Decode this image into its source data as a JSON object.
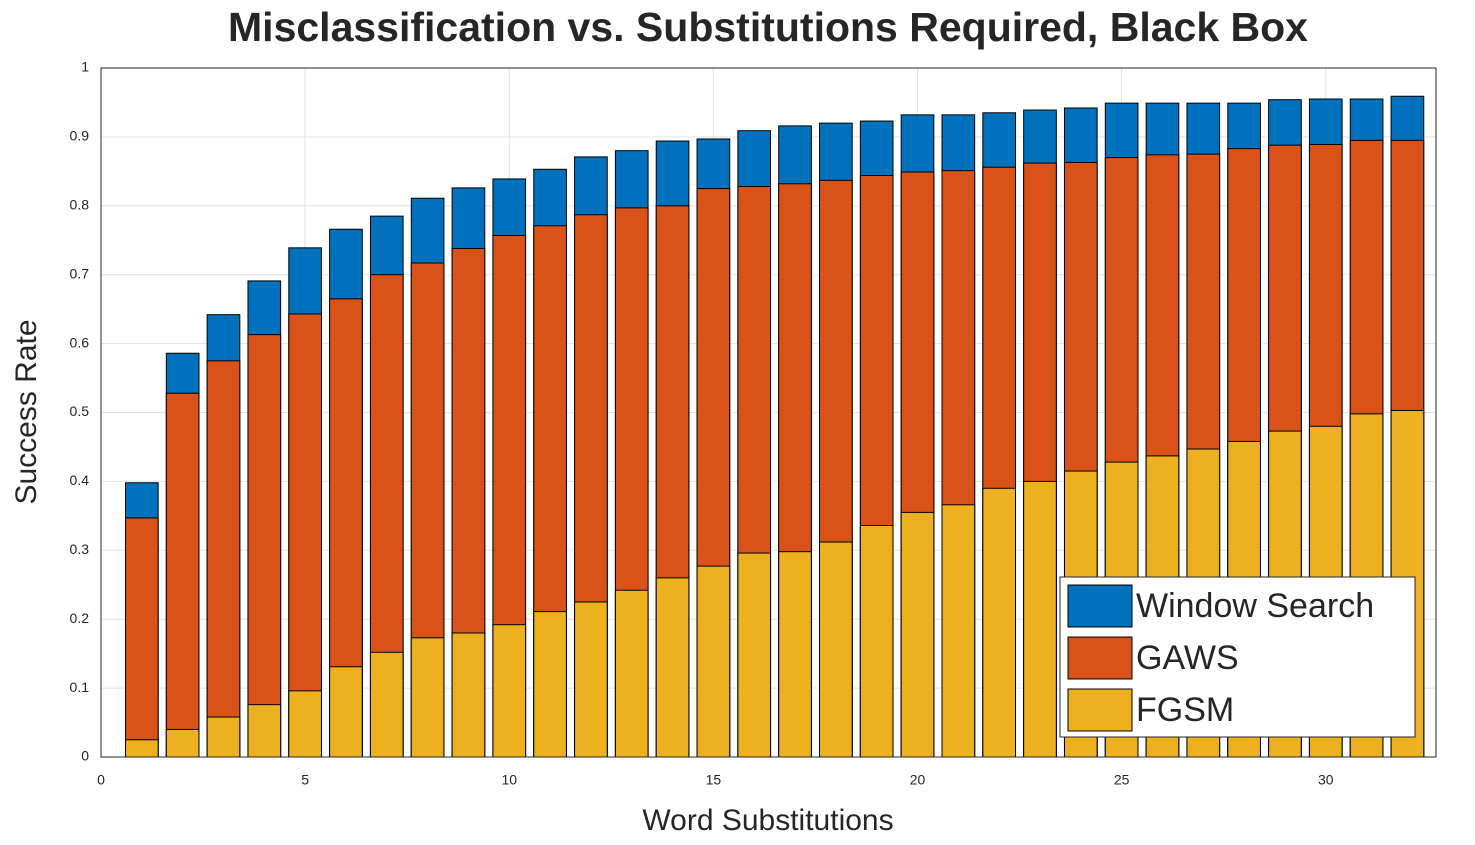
{
  "chart_data": {
    "type": "bar",
    "title": "Misclassification vs. Substitutions Required, Black Box",
    "xlabel": "Word Substitutions",
    "ylabel": "Success Rate",
    "x": [
      1,
      2,
      3,
      4,
      5,
      6,
      7,
      8,
      9,
      10,
      11,
      12,
      13,
      14,
      15,
      16,
      17,
      18,
      19,
      20,
      21,
      22,
      23,
      24,
      25,
      26,
      27,
      28,
      29,
      30,
      31,
      32
    ],
    "series": [
      {
        "name": "Window Search",
        "color": "#0072BD",
        "values": [
          0.398,
          0.586,
          0.642,
          0.691,
          0.739,
          0.766,
          0.785,
          0.811,
          0.826,
          0.839,
          0.853,
          0.871,
          0.88,
          0.894,
          0.897,
          0.909,
          0.916,
          0.92,
          0.923,
          0.932,
          0.932,
          0.935,
          0.939,
          0.942,
          0.949,
          0.949,
          0.949,
          0.949,
          0.954,
          0.955,
          0.955,
          0.959
        ]
      },
      {
        "name": "GAWS",
        "color": "#D95319",
        "values": [
          0.347,
          0.528,
          0.575,
          0.613,
          0.643,
          0.665,
          0.7,
          0.717,
          0.738,
          0.757,
          0.771,
          0.787,
          0.797,
          0.8,
          0.825,
          0.828,
          0.832,
          0.837,
          0.844,
          0.849,
          0.851,
          0.856,
          0.862,
          0.863,
          0.87,
          0.874,
          0.875,
          0.883,
          0.888,
          0.889,
          0.895,
          0.895
        ]
      },
      {
        "name": "FGSM",
        "color": "#EDB120",
        "values": [
          0.025,
          0.04,
          0.058,
          0.076,
          0.096,
          0.131,
          0.152,
          0.173,
          0.18,
          0.192,
          0.211,
          0.225,
          0.242,
          0.26,
          0.277,
          0.296,
          0.298,
          0.312,
          0.336,
          0.355,
          0.366,
          0.39,
          0.4,
          0.415,
          0.428,
          0.437,
          0.447,
          0.458,
          0.473,
          0.48,
          0.498,
          0.503
        ]
      }
    ],
    "xlim": [
      0,
      32.7
    ],
    "xticks": [
      0,
      5,
      10,
      15,
      20,
      25,
      30
    ],
    "ylim": [
      0,
      1
    ],
    "yticks": [
      0,
      0.1,
      0.2,
      0.3,
      0.4,
      0.5,
      0.6,
      0.7,
      0.8,
      0.9,
      1
    ],
    "grid": true,
    "legend": "lower right"
  }
}
